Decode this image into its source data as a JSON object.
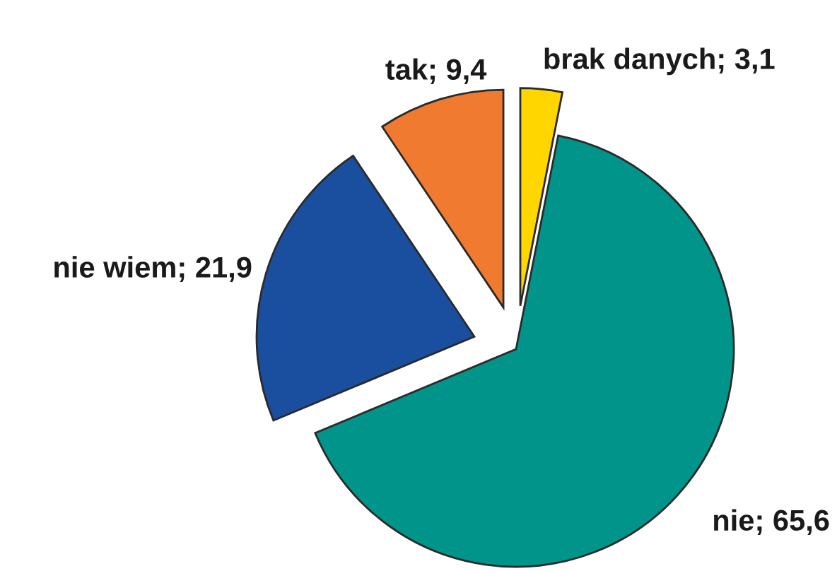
{
  "chart_data": {
    "type": "pie",
    "categories": [
      "brak danych",
      "nie",
      "nie wiem",
      "tak"
    ],
    "values": [
      3.1,
      65.6,
      21.9,
      9.4
    ],
    "colors": [
      "#ffd600",
      "#00948a",
      "#1a4fa0",
      "#f07a30"
    ],
    "value_labels": [
      "3,1",
      "65,6",
      "21,9",
      "9,4"
    ]
  }
}
